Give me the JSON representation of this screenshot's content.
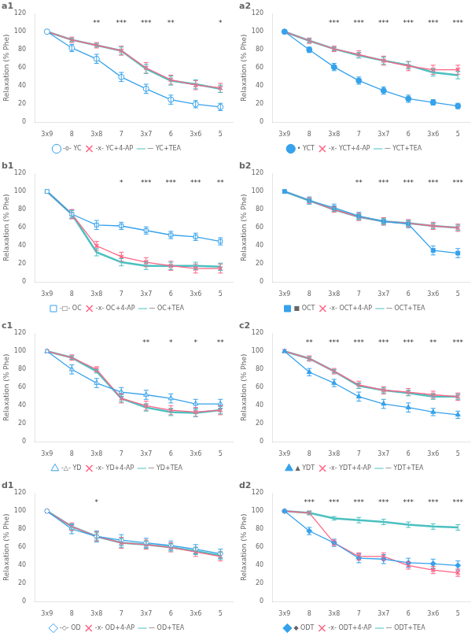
{
  "chart_data": [
    {
      "type": "line",
      "title": "a1",
      "ylabel": "Relaxation (% Phe)",
      "categories": [
        "3x9",
        "8",
        "3x8",
        "7",
        "3x7",
        "6",
        "3x6",
        "5"
      ],
      "series": [
        {
          "name": "-o- YC",
          "values": [
            100,
            82,
            70,
            50,
            37,
            25,
            20,
            17
          ],
          "error": [
            0,
            4,
            5,
            5,
            5,
            5,
            4,
            4
          ],
          "marker": "open circle",
          "line_style": "solid"
        },
        {
          "name": "-x- YC+4-AP",
          "values": [
            100,
            91,
            85,
            79,
            60,
            47,
            41,
            38
          ],
          "error": [
            0,
            3,
            3,
            5,
            6,
            5,
            5,
            5
          ],
          "marker": "x",
          "line_style": "solid"
        },
        {
          "name": "— YC+TEA",
          "values": [
            100,
            91,
            85,
            79,
            59,
            46,
            42,
            37
          ],
          "error": [
            0,
            2,
            2,
            4,
            5,
            5,
            5,
            4
          ],
          "marker": "none",
          "line_style": "solid"
        }
      ],
      "annotations": [
        {
          "x": "3x8",
          "y": 109,
          "text": "**"
        },
        {
          "x": "7",
          "y": 109,
          "text": "***"
        },
        {
          "x": "3x7",
          "y": 109,
          "text": "***"
        },
        {
          "x": "6",
          "y": 109,
          "text": "**"
        },
        {
          "x": "5",
          "y": 109,
          "text": "*"
        }
      ],
      "ylim": [
        0,
        120
      ],
      "yticks": [
        0,
        20,
        40,
        60,
        80,
        100,
        120
      ],
      "grid": false,
      "legend": "bottom"
    },
    {
      "type": "line",
      "title": "a2",
      "ylabel": "Relaxation (% Phe)",
      "categories": [
        "3x9",
        "8",
        "3x8",
        "7",
        "3x7",
        "6",
        "3x6",
        "5"
      ],
      "series": [
        {
          "name": "• YCT",
          "values": [
            100,
            80,
            61,
            46,
            35,
            26,
            22,
            18
          ],
          "error": [
            0,
            3,
            4,
            4,
            4,
            4,
            3,
            3
          ],
          "marker": "circle",
          "line_style": "solid"
        },
        {
          "name": "-x- YCT+4-AP",
          "values": [
            100,
            90,
            81,
            75,
            68,
            62,
            58,
            58
          ],
          "error": [
            0,
            3,
            3,
            4,
            5,
            5,
            5,
            5
          ],
          "marker": "x",
          "line_style": "solid"
        },
        {
          "name": "— YCT+TEA",
          "values": [
            100,
            90,
            81,
            74,
            68,
            63,
            55,
            52
          ],
          "error": [
            0,
            2,
            2,
            3,
            4,
            4,
            4,
            4
          ],
          "marker": "none",
          "line_style": "solid"
        }
      ],
      "annotations": [
        {
          "x": "3x8",
          "y": 109,
          "text": "***"
        },
        {
          "x": "7",
          "y": 109,
          "text": "***"
        },
        {
          "x": "3x7",
          "y": 109,
          "text": "***"
        },
        {
          "x": "6",
          "y": 109,
          "text": "***"
        },
        {
          "x": "3x6",
          "y": 109,
          "text": "***"
        },
        {
          "x": "5",
          "y": 109,
          "text": "***"
        }
      ],
      "ylim": [
        0,
        120
      ],
      "yticks": [
        0,
        20,
        40,
        60,
        80,
        100,
        120
      ],
      "grid": false,
      "legend": "bottom"
    },
    {
      "type": "line",
      "title": "b1",
      "ylabel": "Relaxation (% Phe)",
      "categories": [
        "3x9",
        "8",
        "3x8",
        "7",
        "3x7",
        "6",
        "3x6",
        "5"
      ],
      "series": [
        {
          "name": "-□- OC",
          "values": [
            100,
            75,
            63,
            62,
            57,
            52,
            50,
            45
          ],
          "error": [
            0,
            5,
            5,
            4,
            4,
            4,
            4,
            4
          ],
          "marker": "open square",
          "line_style": "solid"
        },
        {
          "name": "-x- OC+4-AP",
          "values": [
            100,
            75,
            40,
            28,
            22,
            18,
            15,
            15
          ],
          "error": [
            0,
            5,
            5,
            5,
            5,
            5,
            5,
            5
          ],
          "marker": "x",
          "line_style": "solid"
        },
        {
          "name": "— OC+TEA",
          "values": [
            100,
            75,
            33,
            22,
            18,
            18,
            18,
            17
          ],
          "error": [
            0,
            4,
            4,
            4,
            4,
            4,
            4,
            4
          ],
          "marker": "none",
          "line_style": "solid"
        }
      ],
      "annotations": [
        {
          "x": "7",
          "y": 109,
          "text": "*"
        },
        {
          "x": "3x7",
          "y": 109,
          "text": "***"
        },
        {
          "x": "6",
          "y": 109,
          "text": "***"
        },
        {
          "x": "3x6",
          "y": 109,
          "text": "***"
        },
        {
          "x": "5",
          "y": 109,
          "text": "**"
        }
      ],
      "ylim": [
        0,
        120
      ],
      "yticks": [
        0,
        20,
        40,
        60,
        80,
        100,
        120
      ],
      "grid": false,
      "legend": "bottom"
    },
    {
      "type": "line",
      "title": "b2",
      "ylabel": "Relaxation (% Phe)",
      "categories": [
        "3x9",
        "8",
        "3x8",
        "7",
        "3x7",
        "6",
        "3x6",
        "5"
      ],
      "series": [
        {
          "name": "■ OCT",
          "values": [
            100,
            90,
            82,
            73,
            67,
            64,
            35,
            32
          ],
          "error": [
            0,
            4,
            4,
            4,
            4,
            4,
            5,
            5
          ],
          "marker": "square",
          "line_style": "solid"
        },
        {
          "name": "-x- OCT+4-AP",
          "values": [
            100,
            90,
            80,
            72,
            67,
            65,
            62,
            60
          ],
          "error": [
            0,
            3,
            3,
            4,
            4,
            4,
            4,
            4
          ],
          "marker": "x",
          "line_style": "solid"
        },
        {
          "name": "— OCT+TEA",
          "values": [
            100,
            90,
            80,
            72,
            67,
            65,
            62,
            60
          ],
          "error": [
            0,
            2,
            2,
            3,
            3,
            3,
            3,
            3
          ],
          "marker": "none",
          "line_style": "solid"
        }
      ],
      "annotations": [
        {
          "x": "7",
          "y": 109,
          "text": "**"
        },
        {
          "x": "3x7",
          "y": 109,
          "text": "***"
        },
        {
          "x": "6",
          "y": 109,
          "text": "***"
        },
        {
          "x": "3x6",
          "y": 109,
          "text": "***"
        },
        {
          "x": "5",
          "y": 109,
          "text": "***"
        }
      ],
      "ylim": [
        0,
        120
      ],
      "yticks": [
        0,
        20,
        40,
        60,
        80,
        100,
        120
      ],
      "grid": false,
      "legend": "bottom"
    },
    {
      "type": "line",
      "title": "c1",
      "ylabel": "Relaxation (% Phe)",
      "categories": [
        "3x9",
        "8",
        "3x8",
        "7",
        "3x7",
        "6",
        "3x6",
        "5"
      ],
      "series": [
        {
          "name": "-△- YD",
          "values": [
            100,
            80,
            65,
            55,
            52,
            48,
            42,
            42
          ],
          "error": [
            0,
            5,
            5,
            5,
            5,
            5,
            5,
            5
          ],
          "marker": "open triangle",
          "line_style": "solid"
        },
        {
          "name": "-x- YD+4-AP",
          "values": [
            100,
            93,
            80,
            48,
            40,
            35,
            33,
            35
          ],
          "error": [
            0,
            3,
            3,
            5,
            5,
            5,
            5,
            5
          ],
          "marker": "x",
          "line_style": "solid"
        },
        {
          "name": "— YD+TEA",
          "values": [
            100,
            93,
            78,
            48,
            38,
            33,
            32,
            35
          ],
          "error": [
            0,
            2,
            2,
            4,
            4,
            4,
            4,
            4
          ],
          "marker": "none",
          "line_style": "solid"
        }
      ],
      "annotations": [
        {
          "x": "3x7",
          "y": 109,
          "text": "**"
        },
        {
          "x": "6",
          "y": 109,
          "text": "*"
        },
        {
          "x": "3x6",
          "y": 109,
          "text": "*"
        },
        {
          "x": "5",
          "y": 109,
          "text": "**"
        }
      ],
      "ylim": [
        0,
        120
      ],
      "yticks": [
        0,
        20,
        40,
        60,
        80,
        100,
        120
      ],
      "grid": false,
      "legend": "bottom"
    },
    {
      "type": "line",
      "title": "c2",
      "ylabel": "Relaxation (% Phe)",
      "categories": [
        "3x9",
        "8",
        "3x8",
        "7",
        "3x7",
        "6",
        "3x6",
        "5"
      ],
      "series": [
        {
          "name": "▲ YDT",
          "values": [
            100,
            77,
            65,
            50,
            42,
            38,
            33,
            30
          ],
          "error": [
            0,
            4,
            4,
            5,
            5,
            5,
            4,
            4
          ],
          "marker": "triangle",
          "line_style": "solid"
        },
        {
          "name": "-x- YDT+4-AP",
          "values": [
            100,
            92,
            78,
            63,
            57,
            55,
            52,
            50
          ],
          "error": [
            0,
            3,
            3,
            4,
            4,
            4,
            4,
            4
          ],
          "marker": "x",
          "line_style": "solid"
        },
        {
          "name": "— YDT+TEA",
          "values": [
            100,
            92,
            78,
            62,
            57,
            54,
            50,
            50
          ],
          "error": [
            0,
            2,
            2,
            3,
            3,
            3,
            3,
            3
          ],
          "marker": "none",
          "line_style": "solid"
        }
      ],
      "annotations": [
        {
          "x": "8",
          "y": 109,
          "text": "**"
        },
        {
          "x": "3x8",
          "y": 109,
          "text": "***"
        },
        {
          "x": "7",
          "y": 109,
          "text": "***"
        },
        {
          "x": "3x7",
          "y": 109,
          "text": "***"
        },
        {
          "x": "6",
          "y": 109,
          "text": "***"
        },
        {
          "x": "3x6",
          "y": 109,
          "text": "**"
        },
        {
          "x": "5",
          "y": 109,
          "text": "***"
        }
      ],
      "ylim": [
        0,
        120
      ],
      "yticks": [
        0,
        20,
        40,
        60,
        80,
        100,
        120
      ],
      "grid": false,
      "legend": "bottom"
    },
    {
      "type": "line",
      "title": "d1",
      "ylabel": "Relaxation (% Phe)",
      "categories": [
        "3x9",
        "8",
        "3x8",
        "7",
        "3x7",
        "6",
        "3x6",
        "5"
      ],
      "series": [
        {
          "name": "-◇- OD",
          "values": [
            100,
            80,
            72,
            68,
            65,
            62,
            58,
            53
          ],
          "error": [
            0,
            5,
            6,
            6,
            5,
            5,
            5,
            5
          ],
          "marker": "open diamond",
          "line_style": "solid"
        },
        {
          "name": "-x- OD+4-AP",
          "values": [
            100,
            83,
            72,
            65,
            63,
            60,
            55,
            50
          ],
          "error": [
            0,
            4,
            5,
            6,
            5,
            5,
            5,
            5
          ],
          "marker": "x",
          "line_style": "solid"
        },
        {
          "name": "— OD+TEA",
          "values": [
            100,
            83,
            72,
            65,
            63,
            60,
            56,
            51
          ],
          "error": [
            0,
            3,
            4,
            5,
            4,
            4,
            4,
            4
          ],
          "marker": "none",
          "line_style": "solid"
        }
      ],
      "annotations": [
        {
          "x": "3x8",
          "y": 109,
          "text": "*"
        }
      ],
      "ylim": [
        0,
        120
      ],
      "yticks": [
        0,
        20,
        40,
        60,
        80,
        100,
        120
      ],
      "grid": false,
      "legend": "bottom"
    },
    {
      "type": "line",
      "title": "d2",
      "ylabel": "Relaxation (% Phe)",
      "categories": [
        "3x9",
        "8",
        "3x8",
        "7",
        "3x7",
        "6",
        "3x6",
        "5"
      ],
      "series": [
        {
          "name": "◆ ODT",
          "values": [
            100,
            78,
            65,
            48,
            47,
            43,
            42,
            40
          ],
          "error": [
            0,
            4,
            4,
            5,
            5,
            5,
            5,
            5
          ],
          "marker": "diamond",
          "line_style": "solid"
        },
        {
          "name": "-x- ODT+4-AP",
          "values": [
            100,
            98,
            65,
            50,
            50,
            40,
            35,
            32
          ],
          "error": [
            0,
            2,
            3,
            4,
            4,
            4,
            4,
            4
          ],
          "marker": "x",
          "line_style": "solid"
        },
        {
          "name": "— ODT+TEA",
          "values": [
            100,
            98,
            92,
            90,
            88,
            85,
            83,
            82
          ],
          "error": [
            0,
            2,
            2,
            3,
            3,
            3,
            3,
            3
          ],
          "marker": "none",
          "line_style": "solid"
        }
      ],
      "annotations": [
        {
          "x": "8",
          "y": 109,
          "text": "***"
        },
        {
          "x": "3x8",
          "y": 109,
          "text": "***"
        },
        {
          "x": "7",
          "y": 109,
          "text": "***"
        },
        {
          "x": "3x7",
          "y": 109,
          "text": "***"
        },
        {
          "x": "6",
          "y": 109,
          "text": "***"
        },
        {
          "x": "3x6",
          "y": 109,
          "text": "***"
        },
        {
          "x": "5",
          "y": 109,
          "text": "***"
        }
      ],
      "ylim": [
        0,
        120
      ],
      "yticks": [
        0,
        20,
        40,
        60,
        80,
        100,
        120
      ],
      "grid": false,
      "legend": "bottom"
    }
  ]
}
